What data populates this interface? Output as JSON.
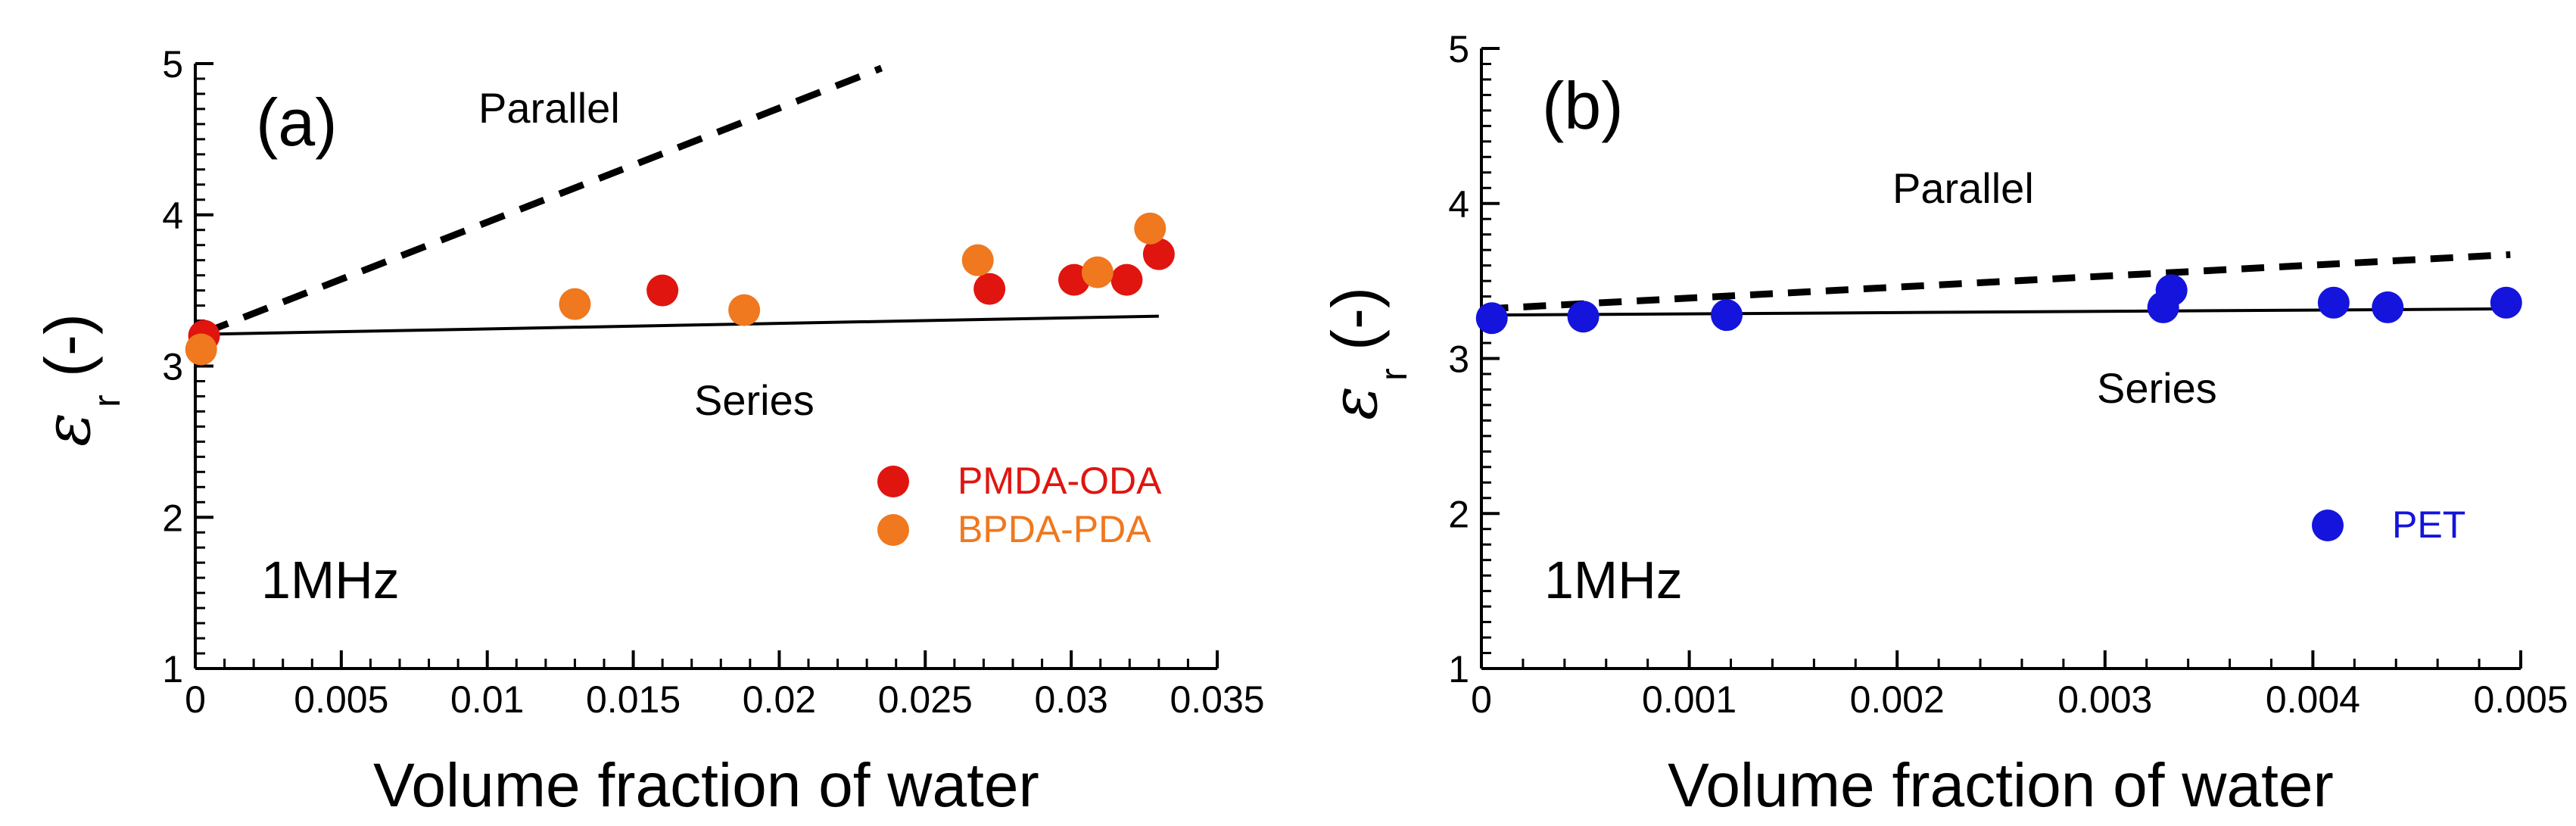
{
  "chart_data": [
    {
      "type": "scatter",
      "panel_label": "(a)",
      "xlabel": "Volume fraction of water",
      "ylabel": {
        "symbol": "ε",
        "subscript": "r",
        "unit": "(-)"
      },
      "xlim": [
        0,
        0.035
      ],
      "ylim": [
        1,
        5
      ],
      "x_ticks": [
        0,
        0.005,
        0.01,
        0.015,
        0.02,
        0.025,
        0.03,
        0.035
      ],
      "x_tick_labels": [
        "0",
        "0.005",
        "0.01",
        "0.015",
        "0.02",
        "0.025",
        "0.03",
        "0.035"
      ],
      "y_ticks": [
        1,
        2,
        3,
        4,
        5
      ],
      "y_tick_labels": [
        "1",
        "2",
        "3",
        "4",
        "5"
      ],
      "frequency_label": "1MHz",
      "series": [
        {
          "name": "PMDA-ODA",
          "color": "#e0150f",
          "x": [
            0.0003,
            0.016,
            0.0272,
            0.0301,
            0.0319,
            0.033
          ],
          "y": [
            3.2,
            3.5,
            3.51,
            3.57,
            3.57,
            3.74
          ]
        },
        {
          "name": "BPDA-PDA",
          "color": "#f0781e",
          "x": [
            0.0002,
            0.013,
            0.0188,
            0.0268,
            0.0309,
            0.0327
          ],
          "y": [
            3.11,
            3.41,
            3.37,
            3.7,
            3.62,
            3.91
          ]
        }
      ],
      "lines": [
        {
          "name": "Parallel",
          "style": "dashed",
          "x": [
            0.0003,
            0.0235
          ],
          "y": [
            3.22,
            4.97
          ]
        },
        {
          "name": "Series",
          "style": "solid",
          "x": [
            0.0003,
            0.033
          ],
          "y": [
            3.21,
            3.33
          ]
        }
      ],
      "annotations": {
        "parallel": "Parallel",
        "series": "Series"
      }
    },
    {
      "type": "scatter",
      "panel_label": "(b)",
      "xlabel": "Volume fraction of water",
      "ylabel": {
        "symbol": "ε",
        "subscript": "r",
        "unit": "(-)"
      },
      "xlim": [
        0,
        0.005
      ],
      "ylim": [
        1,
        5
      ],
      "x_ticks": [
        0,
        0.001,
        0.002,
        0.003,
        0.004,
        0.005
      ],
      "x_tick_labels": [
        "0",
        "0.001",
        "0.002",
        "0.003",
        "0.004",
        "0.005"
      ],
      "y_ticks": [
        1,
        2,
        3,
        4,
        5
      ],
      "y_tick_labels": [
        "1",
        "2",
        "3",
        "4",
        "5"
      ],
      "frequency_label": "1MHz",
      "series": [
        {
          "name": "PET",
          "color": "#1414dc",
          "x": [
            5e-05,
            0.00049,
            0.00118,
            0.00328,
            0.00332,
            0.0041,
            0.00436,
            0.00493
          ],
          "y": [
            3.26,
            3.27,
            3.28,
            3.33,
            3.44,
            3.36,
            3.33,
            3.36
          ]
        }
      ],
      "lines": [
        {
          "name": "Parallel",
          "style": "dashed",
          "x": [
            2e-05,
            0.00495
          ],
          "y": [
            3.32,
            3.67
          ]
        },
        {
          "name": "Series",
          "style": "solid",
          "x": [
            2e-05,
            0.00495
          ],
          "y": [
            3.28,
            3.32
          ]
        }
      ],
      "annotations": {
        "parallel": "Parallel",
        "series": "Series"
      }
    }
  ]
}
